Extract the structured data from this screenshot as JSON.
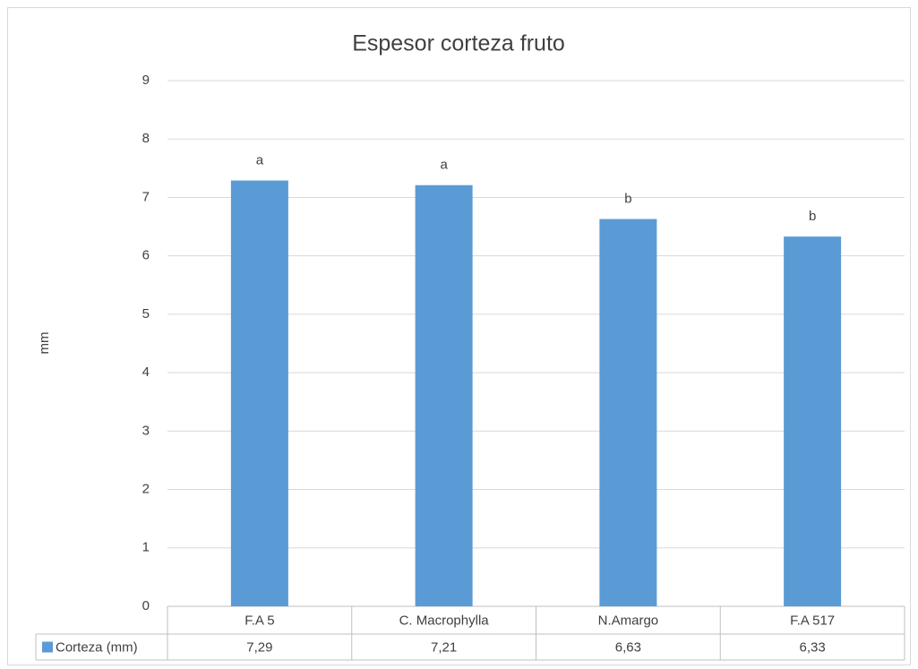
{
  "chart_data": {
    "type": "bar",
    "title": "Espesor corteza fruto",
    "y_label": "mm",
    "categories": [
      "F.A 5",
      "C. Macrophylla",
      "N.Amargo",
      "F.A 517"
    ],
    "series": [
      {
        "name": "Corteza (mm)",
        "color": "#5b9bd5",
        "values": [
          7.29,
          7.21,
          6.63,
          6.33
        ],
        "value_labels": [
          "7,29",
          "7,21",
          "6,63",
          "6,33"
        ]
      }
    ],
    "annotations": [
      "a",
      "a",
      "b",
      "b"
    ],
    "ylim": [
      0,
      9
    ],
    "yticks": [
      0,
      1,
      2,
      3,
      4,
      5,
      6,
      7,
      8,
      9
    ],
    "grid": true
  }
}
